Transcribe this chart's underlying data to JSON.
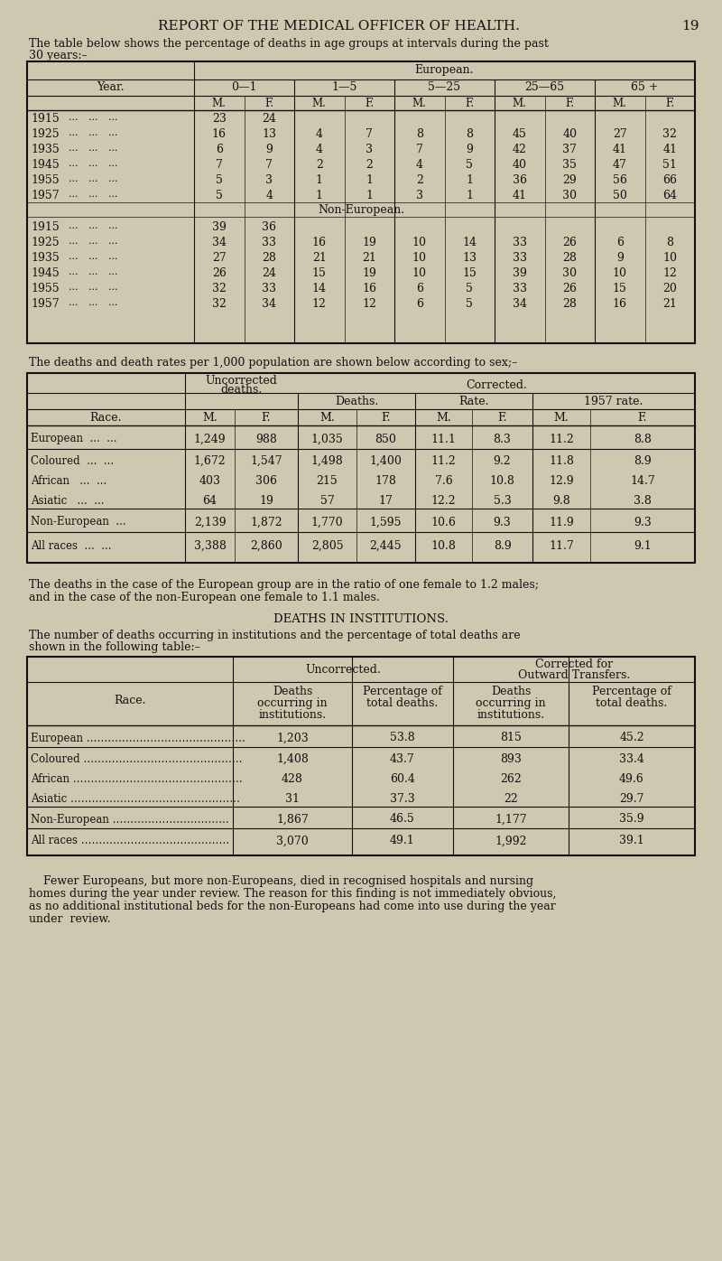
{
  "bg_color": "#cec8b0",
  "text_color": "#1a1a1a",
  "page_title": "REPORT OF THE MEDICAL OFFICER OF HEALTH.",
  "page_number": "19",
  "intro_text1": "The table below shows the percentage of deaths in age groups at intervals during the past",
  "intro_text2": "30 years:–",
  "table1_col_groups": [
    "0—1",
    "1—5",
    "5—25",
    "25—65",
    "65 +"
  ],
  "table1_year_col": "Year.",
  "table1_european_label": "European.",
  "table1_european": [
    {
      "year": "1915",
      "data": [
        "23",
        "24",
        "",
        "",
        "",
        "",
        "",
        "",
        "",
        ""
      ]
    },
    {
      "year": "1925",
      "data": [
        "16",
        "13",
        "4",
        "7",
        "8",
        "8",
        "45",
        "40",
        "27",
        "32"
      ]
    },
    {
      "year": "1935",
      "data": [
        "6",
        "9",
        "4",
        "3",
        "7",
        "9",
        "42",
        "37",
        "41",
        "41"
      ]
    },
    {
      "year": "1945",
      "data": [
        "7",
        "7",
        "2",
        "2",
        "4",
        "5",
        "40",
        "35",
        "47",
        "51"
      ]
    },
    {
      "year": "1955",
      "data": [
        "5",
        "3",
        "1",
        "1",
        "2",
        "1",
        "36",
        "29",
        "56",
        "66"
      ]
    },
    {
      "year": "1957",
      "data": [
        "5",
        "4",
        "1",
        "1",
        "3",
        "1",
        "41",
        "30",
        "50",
        "64"
      ]
    }
  ],
  "table1_noneuropean_label": "Non-European.",
  "table1_noneuropean": [
    {
      "year": "1915",
      "data": [
        "39",
        "36",
        "",
        "",
        "",
        "",
        "",
        "",
        "",
        ""
      ]
    },
    {
      "year": "1925",
      "data": [
        "34",
        "33",
        "16",
        "19",
        "10",
        "14",
        "33",
        "26",
        "6",
        "8"
      ]
    },
    {
      "year": "1935",
      "data": [
        "27",
        "28",
        "21",
        "21",
        "10",
        "13",
        "33",
        "28",
        "9",
        "10"
      ]
    },
    {
      "year": "1945",
      "data": [
        "26",
        "24",
        "15",
        "19",
        "10",
        "15",
        "39",
        "30",
        "10",
        "12"
      ]
    },
    {
      "year": "1955",
      "data": [
        "32",
        "33",
        "14",
        "16",
        "6",
        "5",
        "33",
        "26",
        "15",
        "20"
      ]
    },
    {
      "year": "1957",
      "data": [
        "32",
        "34",
        "12",
        "12",
        "6",
        "5",
        "34",
        "28",
        "16",
        "21"
      ]
    }
  ],
  "table2_intro": "The deaths and death rates per 1,000 population are shown below according to sex;–",
  "table2_rows": [
    {
      "race": "European  ...  ...",
      "um": "1,249",
      "uf": "988",
      "dm": "1,035",
      "df": "850",
      "rm": "11.1",
      "rf": "8.3",
      "r57m": "11.2",
      "r57f": "8.8"
    },
    {
      "race": "Coloured  ...  ...",
      "um": "1,672",
      "uf": "1,547",
      "dm": "1,498",
      "df": "1,400",
      "rm": "11.2",
      "rf": "9.2",
      "r57m": "11.8",
      "r57f": "8.9"
    },
    {
      "race": "African   ...  ...",
      "um": "403",
      "uf": "306",
      "dm": "215",
      "df": "178",
      "rm": "7.6",
      "rf": "10.8",
      "r57m": "12.9",
      "r57f": "14.7"
    },
    {
      "race": "Asiatic   ...  ...",
      "um": "64",
      "uf": "19",
      "dm": "57",
      "df": "17",
      "rm": "12.2",
      "rf": "5.3",
      "r57m": "9.8",
      "r57f": "3.8"
    },
    {
      "race": "Non-European  ...",
      "um": "2,139",
      "uf": "1,872",
      "dm": "1,770",
      "df": "1,595",
      "rm": "10.6",
      "rf": "9.3",
      "r57m": "11.9",
      "r57f": "9.3"
    },
    {
      "race": "All races  ...  ...",
      "um": "3,388",
      "uf": "2,860",
      "dm": "2,805",
      "df": "2,445",
      "rm": "10.8",
      "rf": "8.9",
      "r57m": "11.7",
      "r57f": "9.1"
    }
  ],
  "ratio_text1": "The deaths in the case of the European group are in the ratio of one female to 1.2 males;",
  "ratio_text2": "and in the case of the non-European one female to 1.1 males.",
  "institutions_title": "DEATHS IN INSTITUTIONS.",
  "inst_intro1": "The number of deaths occurring in institutions and the percentage of total deaths are",
  "inst_intro2": "shown in the following table:–",
  "inst_rows": [
    {
      "race": "European",
      "dots": "………………………………………",
      "d1": "1,203",
      "p1": "53.8",
      "d2": "815",
      "p2": "45.2"
    },
    {
      "race": "Coloured",
      "dots": "………………………………………",
      "d1": "1,408",
      "p1": "43.7",
      "d2": "893",
      "p2": "33.4"
    },
    {
      "race": "African",
      "dots": "…………………………………………",
      "d1": "428",
      "p1": "60.4",
      "d2": "262",
      "p2": "49.6"
    },
    {
      "race": "Asiatic",
      "dots": "…………………………………………",
      "d1": "31",
      "p1": "37.3",
      "d2": "22",
      "p2": "29.7"
    },
    {
      "race": "Non-European",
      "dots": "……………………………",
      "d1": "1,867",
      "p1": "46.5",
      "d2": "1,177",
      "p2": "35.9"
    },
    {
      "race": "All races",
      "dots": "……………………………………",
      "d1": "3,070",
      "p1": "49.1",
      "d2": "1,992",
      "p2": "39.1"
    }
  ],
  "footer_text": "    Fewer Europeans, but more non-Europeans, died in recognised hospitals and nursing\nhomes during the year under review. The reason for this finding is not immediately obvious,\nas no additional institutional beds for the non-Europeans had come into use during the year\nunder  review."
}
